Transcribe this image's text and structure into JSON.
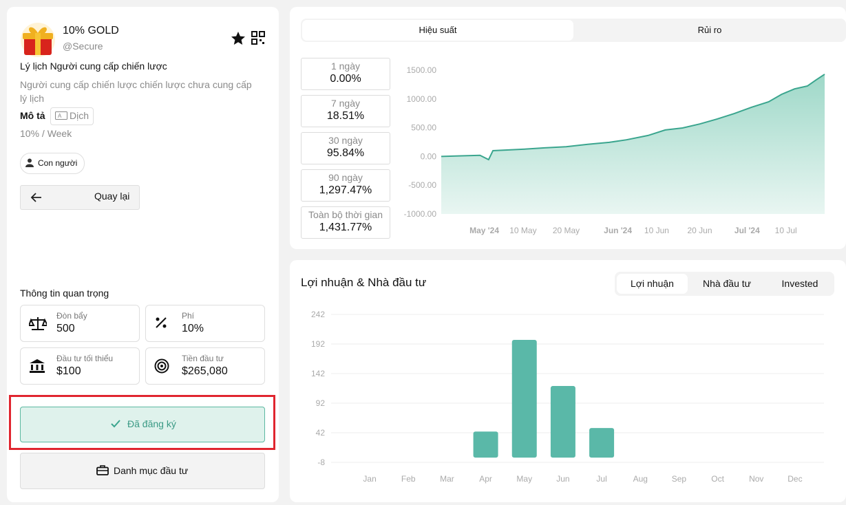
{
  "profile": {
    "name": "10% GOLD",
    "handle": "@Secure"
  },
  "bio": {
    "title": "Lý lịch Người cung cấp chiến lược",
    "text": "Người cung cấp chiến lược chiến lược chưa cung cấp lý lịch"
  },
  "description": {
    "label": "Mô tả",
    "translate": "Dịch",
    "text": "10% / Week"
  },
  "tag": "Con người",
  "back_button": "Quay lại",
  "important": {
    "title": "Thông tin quan trọng",
    "items": [
      {
        "label": "Đòn bẩy",
        "value": "500"
      },
      {
        "label": "Phí",
        "value": "10%"
      },
      {
        "label": "Đầu tư tối thiểu",
        "value": "$100"
      },
      {
        "label": "Tiền đầu tư",
        "value": "$265,080"
      }
    ]
  },
  "subscribed_button": "Đã đăng ký",
  "portfolio_button": "Danh mục đầu tư",
  "performance": {
    "tabs": [
      "Hiệu suất",
      "Rủi ro"
    ],
    "periods": [
      {
        "label": "1 ngày",
        "value": "0.00%"
      },
      {
        "label": "7 ngày",
        "value": "18.51%"
      },
      {
        "label": "30 ngày",
        "value": "95.84%"
      },
      {
        "label": "90 ngày",
        "value": "1,297.47%"
      },
      {
        "label": "Toàn bộ thời gian",
        "value": "1,431.77%"
      }
    ]
  },
  "performance_chart": {
    "type": "line",
    "color": "#3aa58e",
    "x": [
      "2024-04-21",
      "2024-04-25",
      "2024-04-30",
      "2024-05-02",
      "2024-05-03",
      "2024-05-10",
      "2024-05-15",
      "2024-05-20",
      "2024-05-25",
      "2024-05-30",
      "2024-06-03",
      "2024-06-08",
      "2024-06-12",
      "2024-06-16",
      "2024-06-20",
      "2024-06-24",
      "2024-06-28",
      "2024-07-02",
      "2024-07-06",
      "2024-07-09",
      "2024-07-12",
      "2024-07-15",
      "2024-07-17",
      "2024-07-19"
    ],
    "values": [
      0,
      10,
      20,
      -55,
      100,
      125,
      150,
      170,
      210,
      245,
      290,
      365,
      460,
      495,
      565,
      650,
      745,
      855,
      950,
      1080,
      1175,
      1225,
      1330,
      1430
    ],
    "xlim": [
      "2024-04-21",
      "2024-07-19"
    ],
    "xticks": [
      {
        "value": "2024-05-01",
        "label": "May '24"
      },
      {
        "value": "2024-05-10",
        "label": "10 May"
      },
      {
        "value": "2024-05-20",
        "label": "20 May"
      },
      {
        "value": "2024-06-01",
        "label": "Jun '24"
      },
      {
        "value": "2024-06-10",
        "label": "10 Jun"
      },
      {
        "value": "2024-06-20",
        "label": "20 Jun"
      },
      {
        "value": "2024-07-01",
        "label": "Jul '24"
      },
      {
        "value": "2024-07-10",
        "label": "10 Jul"
      }
    ],
    "ylim": [
      -1000,
      1500
    ],
    "yticks": [
      {
        "value": 1500,
        "label": "1500.00"
      },
      {
        "value": 1000,
        "label": "1000.00"
      },
      {
        "value": 500,
        "label": "500.00"
      },
      {
        "value": 0,
        "label": "0.00"
      },
      {
        "value": -500,
        "label": "-500.00"
      },
      {
        "value": -1000,
        "label": "-1000.00"
      }
    ]
  },
  "profit_chart": {
    "type": "bar",
    "title": "Lợi nhuận & Nhà đầu tư",
    "tabs": [
      "Lợi nhuận",
      "Nhà đầu tư",
      "Invested"
    ],
    "color": "#5ab8a8",
    "categories": [
      "Jan",
      "Feb",
      "Mar",
      "Apr",
      "May",
      "Jun",
      "Jul",
      "Aug",
      "Sep",
      "Oct",
      "Nov",
      "Dec"
    ],
    "values": [
      0,
      0,
      0,
      44,
      199,
      121,
      50,
      0,
      0,
      0,
      0,
      0
    ],
    "ylim": [
      -8,
      242
    ],
    "yticks": [
      242,
      192,
      142,
      92,
      42,
      -8
    ],
    "grid": true
  }
}
